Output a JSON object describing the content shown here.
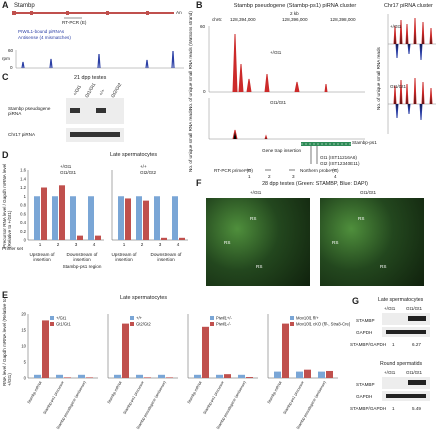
{
  "panels": {
    "A": {
      "label": "A",
      "gene": "Stambp",
      "poly_a": "An",
      "primer": "RT-PCR (E)",
      "legend": [
        "PIWIL1-bound piRNAs",
        "Antisense (4 mismatches)"
      ],
      "ylabel": "rpm",
      "yticks": [
        "60",
        "0"
      ]
    },
    "B": {
      "label": "B",
      "title": "Stambp pseudogene (Stambp-ps1) piRNA cluster",
      "scale": "2 kb",
      "chrom": "chr6:",
      "coords": [
        "128,394,000",
        "128,396,000",
        "128,398,000"
      ],
      "ylabel": "No. of unique small RNA reads (Watsons strand)",
      "ylabel_lower": "No. of unique small RNA reads",
      "tracks": [
        "+/Gt1",
        "Gt1/Gt1"
      ],
      "yticks": [
        "60",
        "50",
        "40",
        "30",
        "20",
        "10",
        "0"
      ],
      "gene": "Stambp-ps1",
      "gene_trap": "Gene trap insertion",
      "insertions": [
        "Gt1 (IST11216A6)",
        "Gt2 (IST12340E11)"
      ],
      "rtpcr": "RT-PCR primer (D)",
      "primers": [
        "1",
        "2",
        "3",
        "4"
      ],
      "northern": "Northern probe (C)"
    },
    "B_right": {
      "title": "Chr17 piRNA cluster",
      "ylabel": "No. of unique small RNA reads",
      "tracks": [
        "+/Gt1",
        "Gt1/Gt1"
      ]
    },
    "C": {
      "label": "C",
      "title": "21 dpp testes",
      "lanes": [
        "+/Gt1",
        "Gt1/Gt1",
        "+/+",
        "Gt2/Gt2"
      ],
      "rows": [
        "Stambp pseudogene piRNA",
        "Chr17 piRNA"
      ]
    },
    "D": {
      "label": "D",
      "title": "Late spermatocytes",
      "ylabel": "Precursor RNA level / Gapdh mRNA level (Relative to +/Gt1)",
      "yticks": [
        "1.6",
        "1.4",
        "1.2",
        "1",
        "0.8",
        "0.6",
        "0.4",
        "0.2",
        "0"
      ],
      "legend_left": [
        "+/Gt1",
        "Gt1/Gt1"
      ],
      "legend_right": [
        "+/+",
        "Gt2/Gt2"
      ],
      "primer_set_label": "Primer set",
      "primer_sets": [
        "1",
        "2",
        "3",
        "4",
        "1",
        "2",
        "3",
        "4"
      ],
      "regions": [
        "Upstream of insertion",
        "Downstream of insertion",
        "Upstream of insertion",
        "Downstream of insertion"
      ],
      "region_group": "Stambp-ps1 region",
      "colors": {
        "het": "#7aa6d6",
        "mut": "#c0504d"
      }
    },
    "E": {
      "label": "E",
      "title": "Late spermatocytes",
      "ylabel": "RNA level / Gapdh mRNA level (Relative to +/Gt1)",
      "xcats": [
        "Stambp mRNA",
        "Stambp-ps1 precursor",
        "Stambp pseudogene (antisense)"
      ],
      "legends": [
        [
          "+/Gt1",
          "Gt1/Gt1"
        ],
        [
          "+/+",
          "Gt2/Gt2"
        ],
        [
          "Piwil1+/-",
          "Piwil1-/-"
        ],
        [
          "Mov10l1 fl/+",
          "Mov10l1 cKO (fl/-, Stra8-Cre)"
        ]
      ],
      "yticks": [
        "20",
        "15",
        "10",
        "5",
        "0"
      ]
    },
    "F": {
      "label": "F",
      "title": "28 dpp testes (Green: STAMBP, Blue: DAPI)",
      "genotypes": [
        "+/Gt1",
        "Gt1/Gt1"
      ],
      "rs": "RS"
    },
    "G": {
      "label": "G",
      "sections": [
        {
          "title": "Late spermatocytes",
          "lanes": [
            "+/Gt1",
            "Gt1/Gt1"
          ],
          "rows": [
            "STAMBP",
            "GAPDH"
          ],
          "ratio_label": "STAMBP/GAPDH",
          "ratios": [
            "1",
            "6.27"
          ]
        },
        {
          "title": "Round spermatids",
          "lanes": [
            "+/Gt1",
            "Gt1/Gt1"
          ],
          "rows": [
            "STAMBP",
            "GAPDH"
          ],
          "ratio_label": "STAMBP/GAPDH",
          "ratios": [
            "1",
            "5.49"
          ]
        }
      ]
    }
  },
  "chart_data": [
    {
      "type": "bar",
      "title": "Late spermatocytes",
      "categories": [
        "1",
        "2",
        "3",
        "4"
      ],
      "series": [
        {
          "name": "+/Gt1",
          "values": [
            1.0,
            1.0,
            1.0,
            1.0
          ]
        },
        {
          "name": "Gt1/Gt1",
          "values": [
            1.2,
            1.25,
            0.1,
            0.1
          ]
        }
      ],
      "ylim": [
        0,
        1.6
      ]
    },
    {
      "type": "bar",
      "title": "Late spermatocytes",
      "categories": [
        "1",
        "2",
        "3",
        "4"
      ],
      "series": [
        {
          "name": "+/+",
          "values": [
            1.0,
            1.0,
            1.0,
            1.0
          ]
        },
        {
          "name": "Gt2/Gt2",
          "values": [
            0.95,
            0.9,
            0.05,
            0.05
          ]
        }
      ],
      "ylim": [
        0,
        1.6
      ]
    },
    {
      "type": "bar",
      "categories": [
        "Stambp mRNA",
        "Stambp-ps1 precursor",
        "Stambp pseudogene (antisense)"
      ],
      "series": [
        {
          "name": "+/Gt1",
          "values": [
            1,
            1,
            1
          ]
        },
        {
          "name": "Gt1/Gt1",
          "values": [
            18,
            0.1,
            0.1
          ]
        }
      ],
      "ylim": [
        0,
        20
      ]
    },
    {
      "type": "bar",
      "categories": [
        "Stambp mRNA",
        "Stambp-ps1 precursor",
        "Stambp pseudogene (antisense)"
      ],
      "series": [
        {
          "name": "+/+",
          "values": [
            1,
            1,
            1
          ]
        },
        {
          "name": "Gt2/Gt2",
          "values": [
            17,
            0.1,
            0.1
          ]
        }
      ],
      "ylim": [
        0,
        20
      ]
    },
    {
      "type": "bar",
      "categories": [
        "Stambp mRNA",
        "Stambp-ps1 precursor",
        "Stambp pseudogene (antisense)"
      ],
      "series": [
        {
          "name": "Piwil1+/-",
          "values": [
            1,
            1,
            1
          ]
        },
        {
          "name": "Piwil1-/-",
          "values": [
            16,
            1.2,
            0.3
          ]
        }
      ],
      "ylim": [
        0,
        20
      ]
    },
    {
      "type": "bar",
      "categories": [
        "Stambp mRNA",
        "Stambp-ps1 precursor",
        "Stambp pseudogene (antisense)"
      ],
      "series": [
        {
          "name": "Mov10l1 fl/+",
          "values": [
            1,
            1,
            1
          ]
        },
        {
          "name": "Mov10l1 cKO (fl/-, Stra8-Cre)",
          "values": [
            8.5,
            1.3,
            1.1
          ]
        }
      ],
      "ylim": [
        0,
        10
      ]
    }
  ]
}
